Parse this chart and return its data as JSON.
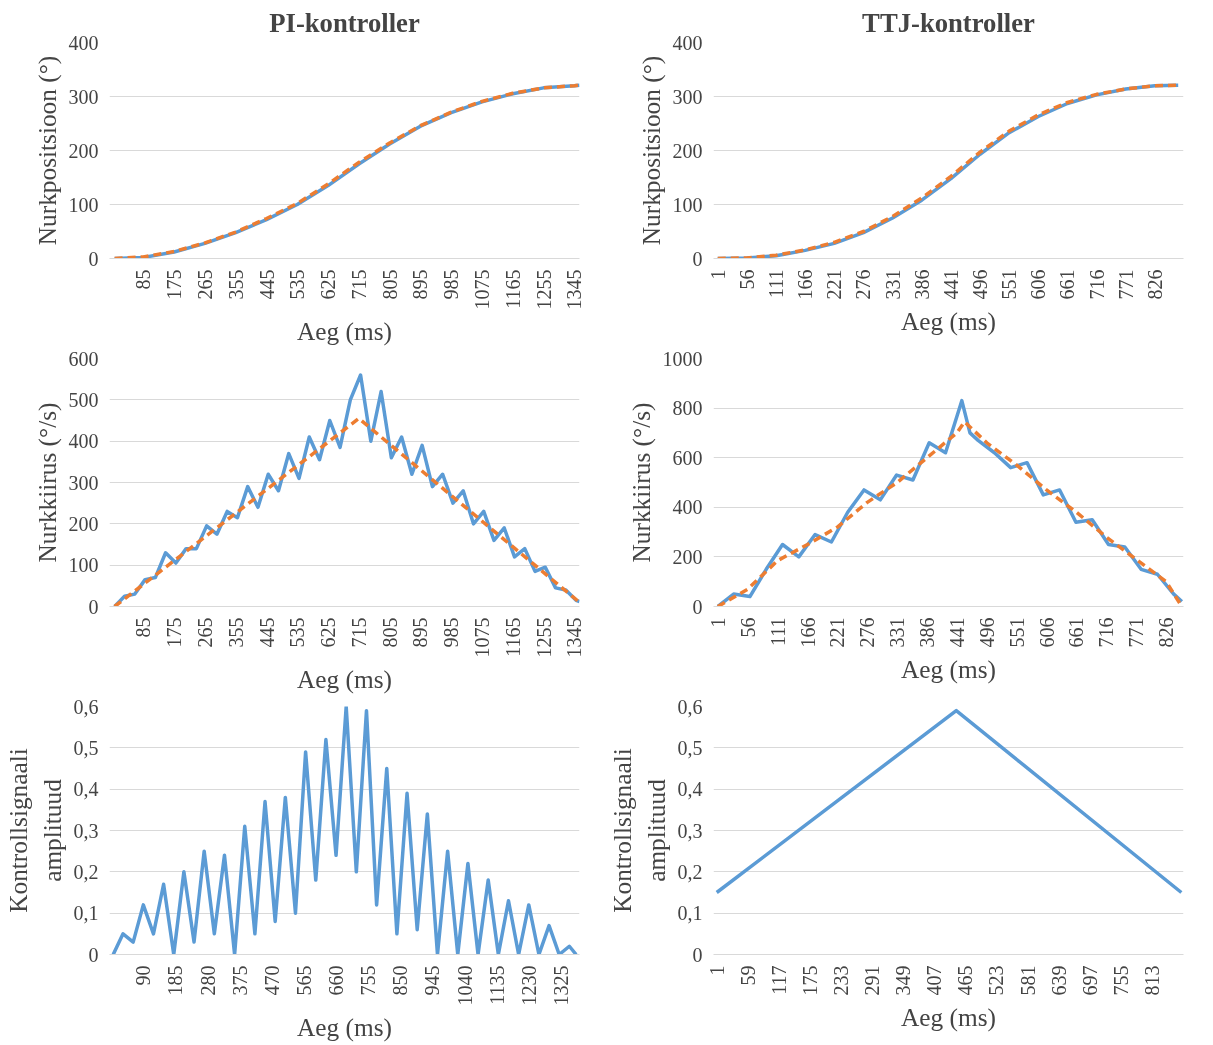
{
  "chart_data": [
    {
      "type": "line",
      "title": "PI-kontroller",
      "xlabel": "Aeg (ms)",
      "ylabel": "Nurkpositsioon (°)",
      "grid": "y",
      "xlim": [
        -14,
        1360
      ],
      "xticks": [
        85,
        175,
        265,
        355,
        445,
        535,
        625,
        715,
        805,
        895,
        985,
        1075,
        1165,
        1255,
        1345
      ],
      "ylim": [
        0,
        400
      ],
      "yticks": [
        0,
        100,
        200,
        300,
        400
      ],
      "series": [
        {
          "color": "#5b9bd5",
          "line_style": "solid",
          "x": [
            1,
            85,
            175,
            265,
            355,
            445,
            535,
            625,
            715,
            805,
            895,
            985,
            1075,
            1165,
            1255,
            1345,
            1360
          ],
          "values": [
            0,
            2,
            12,
            28,
            48,
            72,
            100,
            135,
            175,
            212,
            245,
            270,
            290,
            305,
            316,
            320,
            321
          ]
        },
        {
          "color": "#ed7d31",
          "line_style": "dashed",
          "x": [
            1,
            85,
            175,
            265,
            355,
            445,
            535,
            625,
            715,
            805,
            895,
            985,
            1075,
            1165,
            1255,
            1345,
            1360
          ],
          "values": [
            0,
            3,
            13,
            29,
            49,
            74,
            102,
            138,
            178,
            214,
            246,
            271,
            291,
            306,
            316,
            320,
            321
          ]
        }
      ]
    },
    {
      "type": "line",
      "title": "TTJ-kontroller",
      "xlabel": "Aeg (ms)",
      "ylabel": "Nurkpositsioon (°)",
      "grid": "y",
      "xlim": [
        -7,
        880
      ],
      "xticks": [
        1,
        56,
        111,
        166,
        221,
        276,
        331,
        386,
        441,
        496,
        551,
        606,
        661,
        716,
        771,
        826
      ],
      "ylim": [
        0,
        400
      ],
      "yticks": [
        0,
        100,
        200,
        300,
        400
      ],
      "series": [
        {
          "color": "#5b9bd5",
          "line_style": "solid",
          "x": [
            1,
            56,
            111,
            166,
            221,
            276,
            331,
            386,
            441,
            496,
            551,
            606,
            661,
            716,
            771,
            826,
            870
          ],
          "values": [
            0,
            1,
            5,
            15,
            28,
            48,
            75,
            108,
            148,
            193,
            233,
            263,
            287,
            303,
            314,
            320,
            321
          ]
        },
        {
          "color": "#ed7d31",
          "line_style": "dashed",
          "x": [
            1,
            56,
            111,
            166,
            221,
            276,
            331,
            386,
            441,
            496,
            551,
            606,
            661,
            716,
            771,
            826,
            870
          ],
          "values": [
            0,
            1,
            6,
            16,
            30,
            50,
            78,
            112,
            152,
            197,
            236,
            266,
            289,
            304,
            314,
            320,
            321
          ]
        }
      ]
    },
    {
      "type": "line",
      "xlabel": "Aeg (ms)",
      "ylabel": "Nurkkiirus (°/s)",
      "grid": "y",
      "xlim": [
        -14,
        1360
      ],
      "xticks": [
        85,
        175,
        265,
        355,
        445,
        535,
        625,
        715,
        805,
        895,
        985,
        1075,
        1165,
        1255,
        1345
      ],
      "ylim": [
        0,
        600
      ],
      "yticks": [
        0,
        100,
        200,
        300,
        400,
        500,
        600
      ],
      "series": [
        {
          "color": "#5b9bd5",
          "line_style": "solid",
          "x": [
            1,
            30,
            60,
            90,
            120,
            150,
            180,
            210,
            240,
            270,
            300,
            330,
            360,
            390,
            420,
            450,
            480,
            510,
            540,
            570,
            600,
            630,
            660,
            690,
            720,
            750,
            780,
            810,
            840,
            870,
            900,
            930,
            960,
            990,
            1020,
            1050,
            1080,
            1110,
            1140,
            1170,
            1200,
            1230,
            1260,
            1290,
            1320,
            1350,
            1360
          ],
          "values": [
            0,
            25,
            30,
            65,
            70,
            130,
            105,
            140,
            140,
            195,
            175,
            230,
            215,
            290,
            240,
            320,
            280,
            370,
            310,
            410,
            355,
            450,
            385,
            500,
            560,
            400,
            520,
            360,
            410,
            320,
            390,
            290,
            320,
            250,
            280,
            200,
            230,
            160,
            190,
            120,
            140,
            85,
            95,
            45,
            40,
            15,
            12
          ]
        },
        {
          "color": "#ed7d31",
          "line_style": "dashed",
          "x": [
            1,
            715,
            1360
          ],
          "values": [
            0,
            455,
            10
          ]
        }
      ]
    },
    {
      "type": "line",
      "xlabel": "Aeg (ms)",
      "ylabel": "Nurkkiirus (°/s)",
      "grid": "y",
      "xlim": [
        -7,
        858
      ],
      "xticks": [
        1,
        56,
        111,
        166,
        221,
        276,
        331,
        386,
        441,
        496,
        551,
        606,
        661,
        716,
        771,
        826
      ],
      "ylim": [
        0,
        1000
      ],
      "yticks": [
        0,
        200,
        400,
        600,
        800,
        1000
      ],
      "series": [
        {
          "color": "#5b9bd5",
          "line_style": "solid",
          "x": [
            1,
            30,
            60,
            90,
            120,
            150,
            180,
            210,
            240,
            270,
            300,
            330,
            360,
            390,
            420,
            450,
            465,
            480,
            510,
            540,
            570,
            600,
            630,
            660,
            690,
            720,
            750,
            780,
            810,
            840,
            855
          ],
          "values": [
            0,
            50,
            40,
            150,
            250,
            200,
            290,
            260,
            380,
            470,
            430,
            530,
            510,
            660,
            620,
            830,
            700,
            670,
            620,
            560,
            580,
            450,
            470,
            340,
            350,
            250,
            240,
            150,
            130,
            50,
            20
          ]
        },
        {
          "color": "#ed7d31",
          "line_style": "dashed",
          "x": [
            1,
            56,
            111,
            166,
            221,
            276,
            331,
            386,
            441,
            455,
            496,
            551,
            606,
            661,
            716,
            771,
            826,
            855
          ],
          "values": [
            0,
            70,
            185,
            250,
            320,
            420,
            500,
            600,
            700,
            745,
            660,
            570,
            470,
            380,
            280,
            190,
            100,
            0
          ]
        }
      ]
    },
    {
      "type": "line",
      "xlabel": "Aeg (ms)",
      "ylabel": "Kontrollsignaali\namplituud",
      "grid": "y",
      "xlim": [
        -10,
        1380
      ],
      "xticks": [
        90,
        185,
        280,
        375,
        470,
        565,
        660,
        755,
        850,
        945,
        1040,
        1135,
        1230,
        1325
      ],
      "ylim": [
        0,
        0.6
      ],
      "yticks": [
        0,
        {
          "value": 0.1,
          "label": "0,1"
        },
        {
          "value": 0.2,
          "label": "0,2"
        },
        {
          "value": 0.3,
          "label": "0,3"
        },
        {
          "value": 0.4,
          "label": "0,4"
        },
        {
          "value": 0.5,
          "label": "0,5"
        },
        {
          "value": 0.6,
          "label": "0,6"
        }
      ],
      "series": [
        {
          "color": "#5b9bd5",
          "line_style": "solid",
          "x": [
            1,
            30,
            60,
            90,
            120,
            150,
            180,
            210,
            240,
            270,
            300,
            330,
            360,
            390,
            420,
            450,
            480,
            510,
            540,
            570,
            600,
            630,
            660,
            690,
            720,
            750,
            780,
            810,
            840,
            870,
            900,
            930,
            960,
            990,
            1020,
            1050,
            1080,
            1110,
            1140,
            1170,
            1200,
            1230,
            1260,
            1290,
            1320,
            1350,
            1370
          ],
          "values": [
            0,
            0.05,
            0.03,
            0.12,
            0.05,
            0.17,
            0,
            0.2,
            0.03,
            0.25,
            0.05,
            0.24,
            0,
            0.31,
            0.05,
            0.37,
            0.08,
            0.38,
            0.1,
            0.49,
            0.18,
            0.52,
            0.24,
            0.6,
            0.2,
            0.59,
            0.12,
            0.45,
            0.05,
            0.39,
            0.06,
            0.34,
            0,
            0.25,
            0,
            0.22,
            0,
            0.18,
            0,
            0.13,
            0,
            0.12,
            0,
            0.07,
            0,
            0.02,
            0
          ]
        }
      ]
    },
    {
      "type": "line",
      "xlabel": "Aeg (ms)",
      "ylabel": "Kontrollsignaali\namplituud",
      "grid": "y",
      "xlim": [
        -5,
        872
      ],
      "xticks": [
        1,
        59,
        117,
        175,
        233,
        291,
        349,
        407,
        465,
        523,
        581,
        639,
        697,
        755,
        813
      ],
      "ylim": [
        0,
        0.6
      ],
      "yticks": [
        0,
        {
          "value": 0.1,
          "label": "0,1"
        },
        {
          "value": 0.2,
          "label": "0,2"
        },
        {
          "value": 0.3,
          "label": "0,3"
        },
        {
          "value": 0.4,
          "label": "0,4"
        },
        {
          "value": 0.5,
          "label": "0,5"
        },
        {
          "value": 0.6,
          "label": "0,6"
        }
      ],
      "series": [
        {
          "color": "#5b9bd5",
          "line_style": "solid",
          "x": [
            1,
            448,
            868
          ],
          "values": [
            0.15,
            0.59,
            0.15
          ]
        }
      ]
    }
  ]
}
